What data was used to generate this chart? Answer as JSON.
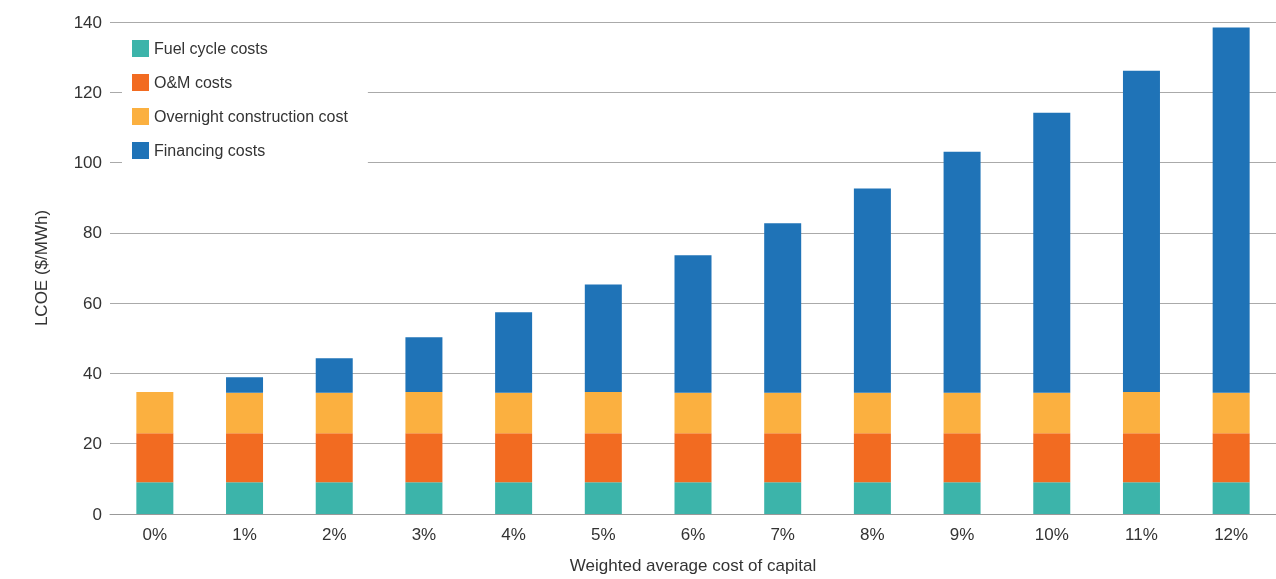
{
  "chart_data": {
    "type": "bar",
    "stacked": true,
    "xlabel": "Weighted average cost of capital",
    "ylabel": "LCOE ($/MWh)",
    "categories": [
      "0%",
      "1%",
      "2%",
      "3%",
      "4%",
      "5%",
      "6%",
      "7%",
      "8%",
      "9%",
      "10%",
      "11%",
      "12%"
    ],
    "series": [
      {
        "name": "Fuel cycle costs",
        "color": "#3cb4aa",
        "values": [
          9,
          9,
          9,
          9,
          9,
          9,
          9,
          9,
          9,
          9,
          9,
          9,
          9
        ]
      },
      {
        "name": "O&M costs",
        "color": "#f26b21",
        "values": [
          14,
          14,
          14,
          14,
          14,
          14,
          14,
          14,
          14,
          14,
          14,
          14,
          14
        ]
      },
      {
        "name": "Overnight construction cost",
        "color": "#fbb040",
        "values": [
          11.7,
          11.5,
          11.5,
          11.7,
          11.5,
          11.7,
          11.5,
          11.5,
          11.5,
          11.5,
          11.5,
          11.7,
          11.5
        ]
      },
      {
        "name": "Financing costs",
        "color": "#1f73b7",
        "values": [
          0,
          4.4,
          9.8,
          15.6,
          22.9,
          30.6,
          39.1,
          48.2,
          58.1,
          68.6,
          79.7,
          91.4,
          103.9
        ]
      }
    ],
    "ylim": [
      0,
      140
    ],
    "yticks": [
      0,
      20,
      40,
      60,
      80,
      100,
      120,
      140
    ],
    "grid": "y",
    "legend": "top left"
  }
}
